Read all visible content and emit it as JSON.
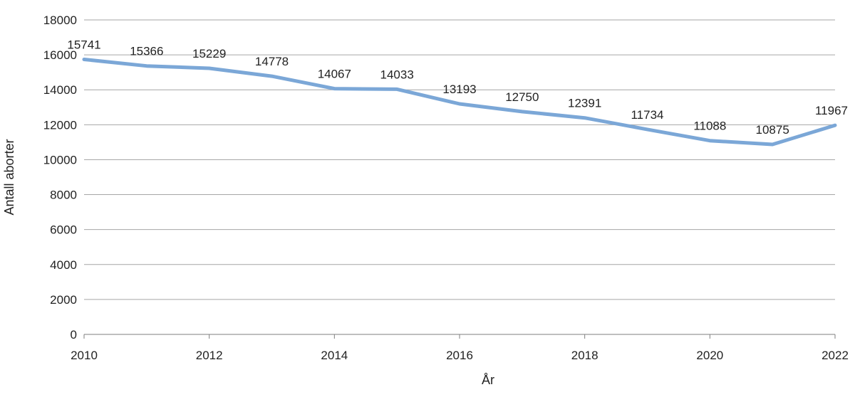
{
  "colors": {
    "line": "#7ba7d7",
    "grid": "#a6a6a6",
    "axis": "#7f7f7f",
    "text": "#222222"
  },
  "chart_data": {
    "type": "line",
    "title": "",
    "xlabel": "År",
    "ylabel": "Antall aborter",
    "xlim": [
      2010,
      2022
    ],
    "ylim": [
      0,
      18000
    ],
    "x": [
      2010,
      2011,
      2012,
      2013,
      2014,
      2015,
      2016,
      2017,
      2018,
      2019,
      2020,
      2021,
      2022
    ],
    "x_ticks": [
      2010,
      2012,
      2014,
      2016,
      2018,
      2020,
      2022
    ],
    "x_tick_labels": [
      "2010",
      "2012",
      "2014",
      "2016",
      "2018",
      "2020",
      "2022"
    ],
    "y_ticks": [
      0,
      2000,
      4000,
      6000,
      8000,
      10000,
      12000,
      14000,
      16000,
      18000
    ],
    "y_tick_labels": [
      "0",
      "2000",
      "4000",
      "6000",
      "8000",
      "10000",
      "12000",
      "14000",
      "16000",
      "18000"
    ],
    "grid": true,
    "legend": "none",
    "series": [
      {
        "name": "Antall aborter",
        "values": [
          15741,
          15366,
          15229,
          14778,
          14067,
          14033,
          13193,
          12750,
          12391,
          11734,
          11088,
          10875,
          11967
        ],
        "data_labels": [
          "15741",
          "15366",
          "15229",
          "14778",
          "14067",
          "14033",
          "13193",
          "12750",
          "12391",
          "11734",
          "11088",
          "10875",
          "11967"
        ]
      }
    ]
  }
}
